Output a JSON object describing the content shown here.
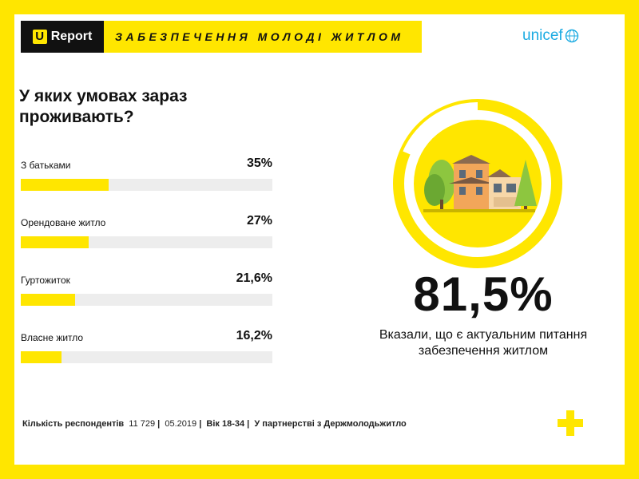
{
  "header": {
    "logo_u": "U",
    "logo_word": "Report",
    "title": "ЗАБЕЗПЕЧЕННЯ МОЛОДІ ЖИТЛОМ"
  },
  "partner_logo": "unicef",
  "question": "У яких умовах зараз проживають?",
  "colors": {
    "accent": "#FFE600",
    "dark": "#111111",
    "track": "#EDEDED",
    "unicef_blue": "#1CABE2"
  },
  "chart_data": {
    "type": "bar",
    "title": "У яких умовах зараз проживають?",
    "categories": [
      "З батьками",
      "Орендоване житло",
      "Гуртожиток",
      "Власне житло"
    ],
    "values": [
      35,
      27,
      21.6,
      16.2
    ],
    "value_labels": [
      "35%",
      "27%",
      "21,6%",
      "16,2%"
    ],
    "ylim": [
      0,
      100
    ],
    "orientation": "horizontal"
  },
  "highlight": {
    "value": 81.5,
    "value_label": "81,5%",
    "caption": "Вказали, що є актуальним питання забезпечення житлом"
  },
  "footer": {
    "respondents_label": "Кількість респондентів",
    "respondents_count": "11 729",
    "date": "05.2019",
    "age": "Вік 18-34",
    "partner": "У партнерстві з Держмолодьжитло"
  }
}
